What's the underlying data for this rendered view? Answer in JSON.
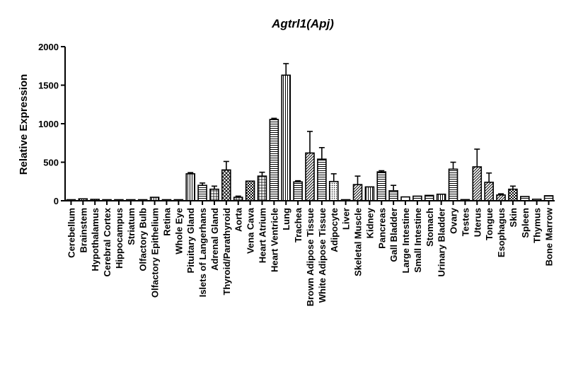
{
  "chart_data": {
    "type": "bar",
    "title": "Agtrl1(Apj)",
    "xlabel": "",
    "ylabel": "Relative Expression",
    "ylim": [
      0,
      2000
    ],
    "yticks": [
      0,
      500,
      1000,
      1500,
      2000
    ],
    "grid": false,
    "legend": "none",
    "categories": [
      "Cerebellum",
      "Brainstem",
      "Hypothalamus",
      "Cerebral Cortex",
      "Hippocampus",
      "Striatum",
      "Olfactory Bulb",
      "Olfactory Epithelium",
      "Retina",
      "Whole Eye",
      "Pituitary Gland",
      "Islets of Langerhans",
      "Adrenal Gland",
      "Thyroid/Parathyroid",
      "Aorta",
      "Vena Cava",
      "Heart Atrium",
      "Heart Ventricle",
      "Lung",
      "Trachea",
      "Brown Adipose Tissue",
      "White Adipose Tissue",
      "Adipocyte",
      "Liver",
      "Skeletal Muscle",
      "Kidney",
      "Pancreas",
      "Gall Bladder",
      "Large Intestine",
      "Small Intestine",
      "Stomach",
      "Urinary Bladder",
      "Ovary",
      "Testes",
      "Uterus",
      "Tongue",
      "Esophagus",
      "Skin",
      "Spleen",
      "Thymus",
      "Bone Marrow"
    ],
    "values": [
      8,
      25,
      18,
      5,
      5,
      5,
      10,
      45,
      3,
      12,
      350,
      200,
      150,
      400,
      45,
      255,
      320,
      1055,
      1630,
      245,
      620,
      540,
      250,
      3,
      210,
      180,
      375,
      130,
      50,
      60,
      70,
      85,
      410,
      15,
      440,
      240,
      75,
      150,
      55,
      20,
      65
    ],
    "errors": [
      2,
      5,
      5,
      2,
      2,
      2,
      3,
      5,
      1,
      3,
      15,
      30,
      40,
      110,
      15,
      10,
      50,
      15,
      150,
      15,
      280,
      150,
      100,
      1,
      110,
      10,
      15,
      70,
      5,
      5,
      5,
      5,
      90,
      3,
      230,
      120,
      15,
      40,
      5,
      3,
      5
    ],
    "patterns": [
      "solid",
      "vlines",
      "vlines",
      "solid",
      "solid",
      "solid",
      "solid",
      "vlines",
      "solid",
      "solid",
      "vlines",
      "hlines",
      "grid",
      "cross",
      "grid",
      "check",
      "grid",
      "hlines",
      "vlines",
      "hlines",
      "diag",
      "hlines",
      "dots",
      "solid",
      "diag",
      "vlines",
      "hlines",
      "hlines",
      "solid",
      "hlines",
      "hlines",
      "vlines",
      "hlines",
      "vlines",
      "diag",
      "diag",
      "diag",
      "check",
      "hlines",
      "solid",
      "hlines"
    ]
  }
}
